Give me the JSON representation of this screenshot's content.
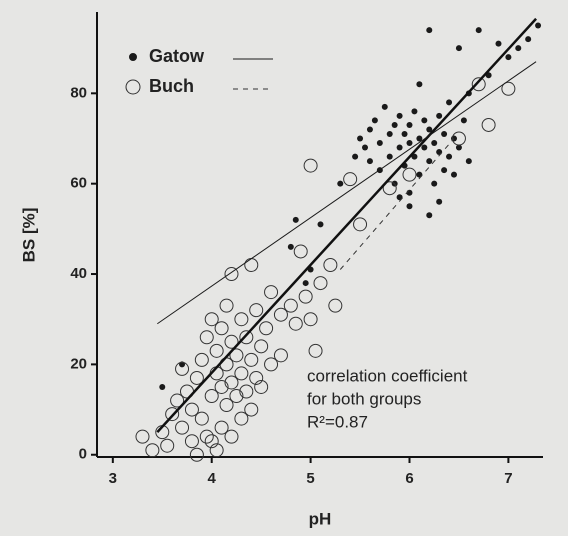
{
  "chart_data": {
    "type": "scatter",
    "xlabel": "pH",
    "ylabel": "BS [%]",
    "xlim": [
      2.84,
      7.35
    ],
    "ylim": [
      -0.5,
      98
    ],
    "xticks": [
      3,
      4,
      5,
      6,
      7
    ],
    "yticks": [
      0,
      20,
      40,
      60,
      80
    ],
    "legend": "top-left",
    "annotation": [
      "correlation coefficient",
      "for both groups",
      "R²=0.87"
    ],
    "fit_line": {
      "x": [
        3.45,
        7.28
      ],
      "y": [
        5,
        96.5
      ]
    },
    "series": [
      {
        "name": "Gatow",
        "color": "#1a1a1a",
        "marker": "filled",
        "dash": "solid",
        "fit_x": [
          3.45,
          7.28
        ],
        "fit_y": [
          29,
          87
        ],
        "x": [
          3.5,
          3.7,
          4.8,
          4.85,
          4.95,
          5.0,
          5.1,
          5.3,
          5.45,
          5.5,
          5.55,
          5.6,
          5.6,
          5.65,
          5.7,
          5.7,
          5.75,
          5.8,
          5.8,
          5.85,
          5.85,
          5.9,
          5.9,
          5.95,
          5.95,
          6.0,
          6.0,
          6.0,
          6.05,
          6.05,
          6.1,
          6.1,
          6.1,
          6.15,
          6.15,
          6.2,
          6.2,
          6.2,
          6.25,
          6.25,
          6.3,
          6.3,
          6.35,
          6.35,
          6.4,
          6.4,
          6.45,
          6.45,
          6.5,
          6.5,
          6.55,
          6.6,
          6.6,
          6.7,
          6.8,
          6.9,
          7.0,
          7.1,
          7.2,
          7.3,
          6.0,
          6.2,
          5.9,
          6.3
        ],
        "values": [
          15,
          20,
          46,
          52,
          38,
          41,
          51,
          60,
          66,
          70,
          68,
          72,
          65,
          74,
          69,
          63,
          77,
          71,
          66,
          73,
          60,
          68,
          75,
          64,
          71,
          69,
          73,
          58,
          66,
          76,
          70,
          62,
          82,
          68,
          74,
          65,
          72,
          94,
          60,
          69,
          67,
          75,
          63,
          71,
          66,
          78,
          70,
          62,
          68,
          90,
          74,
          80,
          65,
          94,
          84,
          91,
          88,
          90,
          92,
          95,
          55,
          53,
          57,
          56
        ]
      },
      {
        "name": "Buch",
        "color": "#333333",
        "marker": "open",
        "dash": "dashed",
        "fit_x": [
          5.3,
          6.45
        ],
        "fit_y": [
          41,
          70
        ],
        "x": [
          3.3,
          3.4,
          3.5,
          3.55,
          3.6,
          3.65,
          3.7,
          3.7,
          3.75,
          3.8,
          3.8,
          3.85,
          3.9,
          3.9,
          3.95,
          3.95,
          4.0,
          4.0,
          4.0,
          4.05,
          4.05,
          4.1,
          4.1,
          4.1,
          4.15,
          4.15,
          4.15,
          4.2,
          4.2,
          4.2,
          4.2,
          4.25,
          4.25,
          4.3,
          4.3,
          4.3,
          4.35,
          4.35,
          4.4,
          4.4,
          4.4,
          4.45,
          4.45,
          4.5,
          4.5,
          4.55,
          4.6,
          4.6,
          4.7,
          4.7,
          4.8,
          4.85,
          4.9,
          4.95,
          5.0,
          5.05,
          5.1,
          5.2,
          5.25,
          5.4,
          5.5,
          5.0,
          5.8,
          6.0,
          6.5,
          6.7,
          6.8,
          7.0,
          3.85,
          4.05
        ],
        "values": [
          4,
          1,
          5,
          2,
          9,
          12,
          6,
          19,
          14,
          3,
          10,
          17,
          21,
          8,
          4,
          26,
          13,
          3,
          30,
          18,
          23,
          6,
          15,
          28,
          11,
          20,
          33,
          4,
          16,
          25,
          40,
          13,
          22,
          8,
          18,
          30,
          14,
          26,
          10,
          21,
          42,
          17,
          32,
          15,
          24,
          28,
          20,
          36,
          31,
          22,
          33,
          29,
          45,
          35,
          30,
          23,
          38,
          42,
          33,
          61,
          51,
          64,
          59,
          62,
          70,
          82,
          73,
          81,
          0,
          1
        ]
      }
    ]
  }
}
